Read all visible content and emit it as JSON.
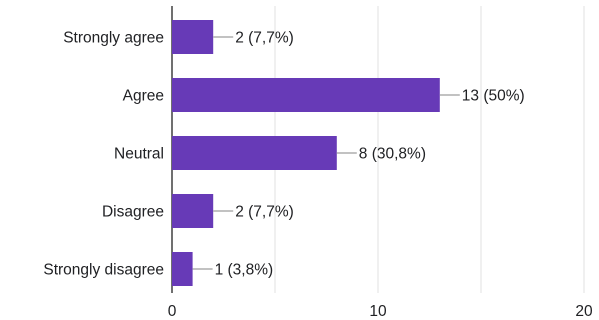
{
  "chart_data": {
    "type": "bar",
    "orientation": "horizontal",
    "categories": [
      "Strongly agree",
      "Agree",
      "Neutral",
      "Disagree",
      "Strongly disagree"
    ],
    "values": [
      2,
      13,
      8,
      2,
      1
    ],
    "data_labels": [
      "2 (7,7%)",
      "13 (50%)",
      "8 (30,8%)",
      "2 (7,7%)",
      "1 (3,8%)"
    ],
    "xlim": [
      0,
      20
    ],
    "xticks": [
      0,
      5,
      10,
      15,
      20
    ],
    "xtick_labels": [
      "0",
      "",
      "10",
      "",
      "20"
    ],
    "grid": true,
    "legend": "none",
    "title": "",
    "xlabel": "",
    "ylabel": "",
    "colors": {
      "bar": "#673ab7",
      "grid": "#e0e0e0",
      "axis": "#333333",
      "leader": "#9e9e9e",
      "text": "#202124"
    }
  }
}
